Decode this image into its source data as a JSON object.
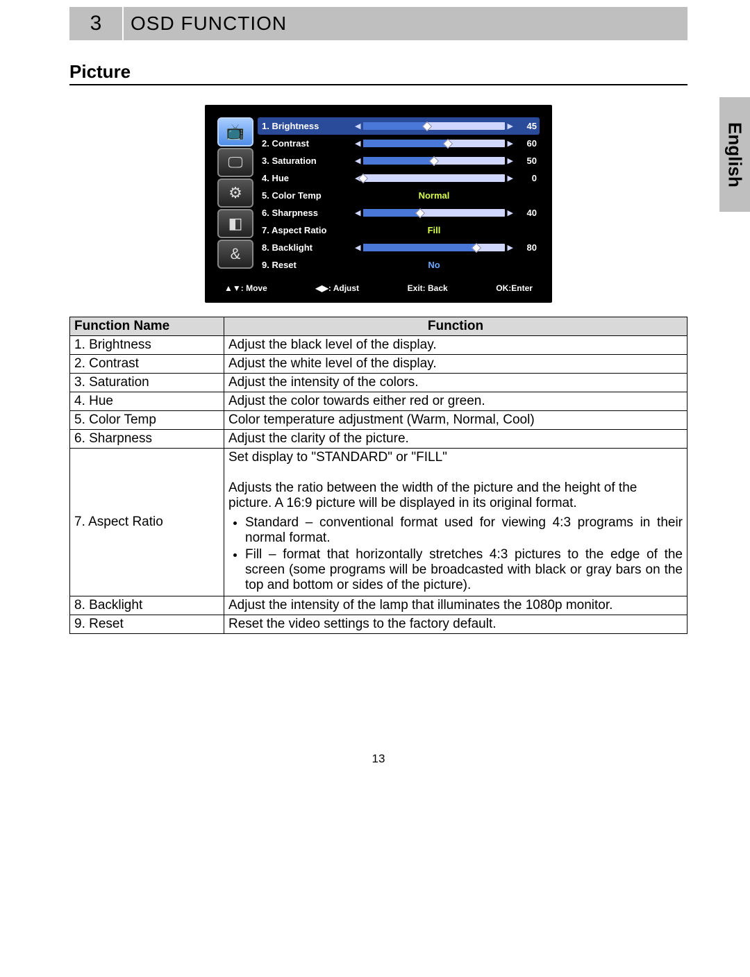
{
  "header": {
    "chapter_no": "3",
    "chapter_title": "OSD FUNCTION"
  },
  "lang_tab": "English",
  "section_title": "Picture",
  "page_number": "13",
  "osd": {
    "background_color": "#000000",
    "active_row_bg": "#2a4a9a",
    "slider_track_color": "#cfd7ff",
    "slider_fill_color": "#4a78d8",
    "text_color": "#ffffff",
    "highlight_text_color": "#d8ff4a",
    "nav_icons": [
      {
        "glyph": "📺",
        "active": true
      },
      {
        "glyph": "🖵",
        "active": false
      },
      {
        "glyph": "⚙",
        "active": false
      },
      {
        "glyph": "◧",
        "active": false
      },
      {
        "glyph": "&",
        "active": false
      }
    ],
    "items": [
      {
        "label": "1. Brightness",
        "type": "slider",
        "value": 45,
        "max": 100,
        "active": true
      },
      {
        "label": "2. Contrast",
        "type": "slider",
        "value": 60,
        "max": 100
      },
      {
        "label": "3. Saturation",
        "type": "slider",
        "value": 50,
        "max": 100
      },
      {
        "label": "4. Hue",
        "type": "slider",
        "value": 0,
        "max": 100
      },
      {
        "label": "5. Color Temp",
        "type": "text",
        "text": "Normal",
        "color": "#d8ff4a"
      },
      {
        "label": "6. Sharpness",
        "type": "slider",
        "value": 40,
        "max": 100
      },
      {
        "label": "7. Aspect Ratio",
        "type": "text",
        "text": "Fill",
        "color": "#d8ff4a"
      },
      {
        "label": "8. Backlight",
        "type": "slider",
        "value": 80,
        "max": 100
      },
      {
        "label": "9. Reset",
        "type": "text",
        "text": "No",
        "color": "#6aa8ff"
      }
    ],
    "hints": [
      {
        "text": "▲▼: Move"
      },
      {
        "text": "◀▶: Adjust"
      },
      {
        "text": "Exit: Back"
      },
      {
        "text": "OK:Enter"
      }
    ]
  },
  "table": {
    "headers": [
      "Function Name",
      "Function"
    ],
    "rows": [
      {
        "name": "1. Brightness",
        "desc": "Adjust the black level of the display."
      },
      {
        "name": "2. Contrast",
        "desc": "Adjust the white level of the display."
      },
      {
        "name": "3. Saturation",
        "desc": "Adjust the intensity of the colors."
      },
      {
        "name": "4. Hue",
        "desc": "Adjust the color towards either red or green."
      },
      {
        "name": "5. Color Temp",
        "desc": "Color temperature adjustment (Warm, Normal, Cool)"
      },
      {
        "name": "6. Sharpness",
        "desc": "Adjust the clarity of the picture."
      }
    ],
    "aspect": {
      "name": "7. Aspect Ratio",
      "line1": "Set display to \"STANDARD\" or \"FILL\"",
      "para": "Adjusts the ratio between the width of the picture and the height of the picture. A 16:9 picture will be displayed in its original format.",
      "bullets": [
        "Standard – conventional format used for viewing 4:3 programs in their normal format.",
        "Fill – format that horizontally stretches 4:3 pictures to the edge of the screen (some programs will be broadcasted with black or gray bars on the top and bottom or sides of the picture)."
      ]
    },
    "rows_tail": [
      {
        "name": "8. Backlight",
        "desc": "Adjust the intensity of the lamp that illuminates the 1080p monitor."
      },
      {
        "name": "9. Reset",
        "desc": "Reset the video settings to the factory default."
      }
    ]
  }
}
